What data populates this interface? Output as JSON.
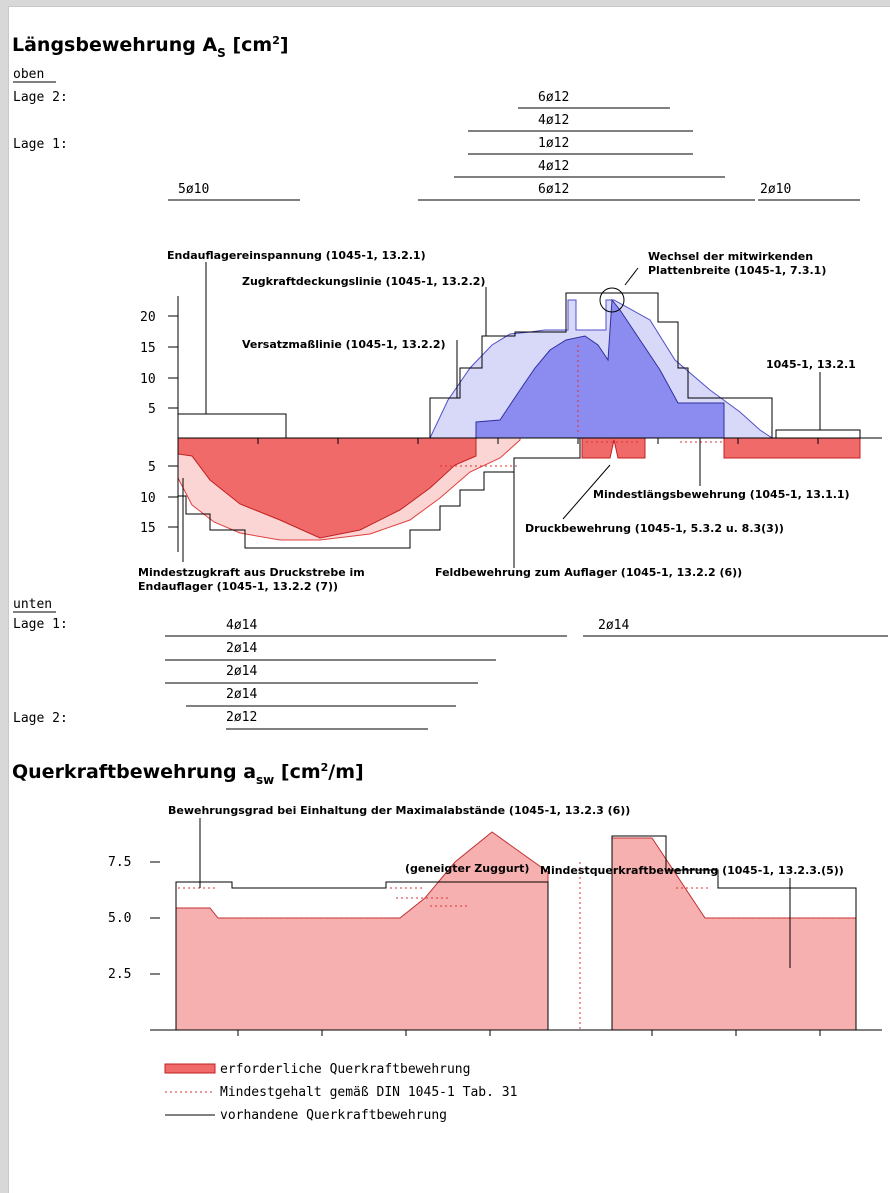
{
  "sections": {
    "laengs": {
      "title_main": "Längsbewehrung A",
      "title_sub": "S",
      "title_unit_pre": " [cm",
      "title_sup": "2",
      "title_unit_post": "]"
    },
    "quer": {
      "title_main": "Querkraftbewehrung a",
      "title_sub": "sw",
      "title_unit_pre": " [cm",
      "title_sup": "2",
      "title_unit_post": "/m]"
    }
  },
  "oben": {
    "label": "oben",
    "lage2_label": "Lage 2:",
    "lage1_label": "Lage 1:",
    "bars": [
      "6ø12",
      "4ø12",
      "1ø12",
      "4ø12",
      "6ø12",
      "5ø10",
      "2ø10"
    ]
  },
  "unten": {
    "label": "unten",
    "lage1_label": "Lage 1:",
    "lage2_label": "Lage 2:",
    "bars": [
      "4ø14",
      "2ø14",
      "2ø14",
      "2ø14",
      "2ø14",
      "2ø12"
    ]
  },
  "annotations_long": {
    "a1": "Endauflagereinspannung (1045-1, 13.2.1)",
    "a2": "Zugkraftdeckungslinie (1045-1, 13.2.2)",
    "a3": "Versatzmaßlinie (1045-1, 13.2.2)",
    "a4_l1": "Wechsel der mitwirkenden",
    "a4_l2": "Plattenbreite (1045-1, 7.3.1)",
    "a5": "1045-1, 13.2.1",
    "a6": "Mindestlängsbewehrung (1045-1, 13.1.1)",
    "a7": "Druckbewehrung (1045-1, 5.3.2 u. 8.3(3))",
    "a8": "Feldbewehrung zum Auflager (1045-1, 13.2.2 (6))",
    "a9_l1": "Mindestzugkraft aus Druckstrebe im",
    "a9_l2": "Endauflager (1045-1, 13.2.2 (7))"
  },
  "annotations_quer": {
    "b1": "Bewehrungsgrad bei Einhaltung der Maximalabstände (1045-1, 13.2.3 (6))",
    "b2": "Mindestquerkraftbewehrung (1045-1, 13.2.3.(5))",
    "b3": "(geneigter Zuggurt)"
  },
  "chart_data": [
    {
      "type": "area",
      "title": "Längsbewehrung AS [cm2]",
      "y_ticks_upper": [
        "20",
        "15",
        "10",
        "5"
      ],
      "y_ticks_lower": [
        "5",
        "10",
        "15"
      ],
      "series": [
        {
          "name": "Zugkraftdeckungslinie (1045-1, 13.2.2)",
          "color": "#8c8cf0"
        },
        {
          "name": "Versatzmaßlinie (1045-1, 13.2.2)",
          "color": "#d8d8f8"
        },
        {
          "name": "Feldbewehrung zum Auflager (1045-1, 13.2.2 (6))",
          "color": "#f06a6a"
        }
      ]
    },
    {
      "type": "area",
      "title": "Querkraftbewehrung asw [cm2/m]",
      "y_ticks": [
        "7.5",
        "5.0",
        "2.5"
      ],
      "y_tick_values": [
        7.5,
        5.0,
        2.5
      ],
      "series": [
        {
          "name": "erforderliche Querkraftbewehrung",
          "color": "#f7b0b0"
        },
        {
          "name": "Mindestgehalt gemäß DIN 1045-1 Tab. 31",
          "color": "#e03030"
        },
        {
          "name": "vorhandene Querkraftbewehrung",
          "color": "#000000"
        }
      ]
    }
  ],
  "legend": {
    "l1": "erforderliche Querkraftbewehrung",
    "l2": "Mindestgehalt gemäß DIN 1045-1 Tab. 31",
    "l3": "vorhandene Querkraftbewehrung"
  },
  "colors": {
    "blue_dark": "#8c8cf0",
    "blue_light": "#d8d8f8",
    "red_dark": "#f06a6a",
    "red_light": "#fbd4d4",
    "pink": "#f7b0b0",
    "dot_red": "#e03030"
  }
}
